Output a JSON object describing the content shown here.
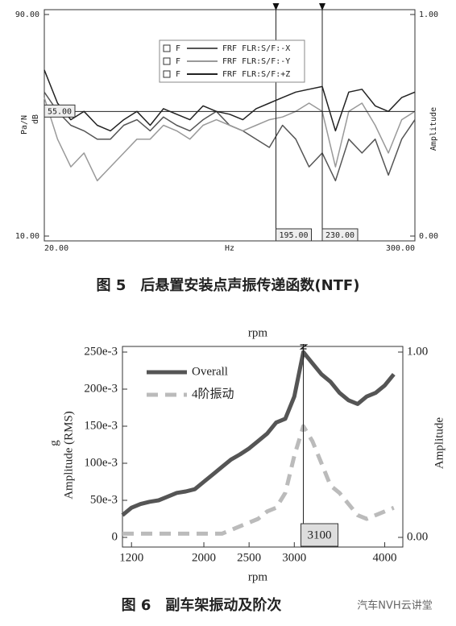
{
  "chart_data": [
    {
      "type": "line",
      "title": "图 5　后悬置安装点声振传递函数(NTF)",
      "ylabel": "Pa/N",
      "yunit": "dB",
      "xlabel": "Hz",
      "y2label": "Amplitude",
      "x": [
        20,
        30,
        40,
        50,
        60,
        70,
        80,
        90,
        100,
        110,
        120,
        130,
        140,
        150,
        160,
        170,
        180,
        190,
        200,
        210,
        220,
        230,
        240,
        250,
        260,
        270,
        280,
        290,
        300
      ],
      "legend_prefix": "F",
      "series": [
        {
          "name": "FRF FLR:S/F:-X",
          "color": "#555555",
          "values": [
            62,
            55,
            50,
            48,
            45,
            45,
            50,
            52,
            48,
            53,
            50,
            48,
            52,
            55,
            50,
            48,
            45,
            42,
            50,
            45,
            35,
            40,
            30,
            45,
            40,
            45,
            32,
            45,
            52
          ]
        },
        {
          "name": "FRF FLR:S/F:-Y",
          "color": "#999999",
          "values": [
            60,
            45,
            35,
            40,
            30,
            35,
            40,
            45,
            45,
            50,
            48,
            45,
            50,
            52,
            50,
            48,
            50,
            52,
            53,
            55,
            58,
            55,
            35,
            55,
            58,
            50,
            40,
            52,
            55
          ]
        },
        {
          "name": "FRF FLR:S/F:+Z",
          "color": "#222222",
          "values": [
            70,
            58,
            52,
            55,
            50,
            48,
            52,
            55,
            50,
            56,
            54,
            52,
            57,
            55,
            54,
            52,
            56,
            58,
            60,
            62,
            63,
            64,
            48,
            62,
            63,
            57,
            55,
            60,
            62
          ]
        }
      ],
      "xlim": [
        20,
        300
      ],
      "xticks": [
        {
          "value": 20,
          "label": "20.00"
        },
        {
          "value": 300,
          "label": "300.00"
        }
      ],
      "ylim": [
        10,
        90
      ],
      "yticks": [
        {
          "value": 10,
          "label": "10.00"
        },
        {
          "value": 90,
          "label": "90.00"
        }
      ],
      "y2lim": [
        0,
        1
      ],
      "y2ticks": [
        {
          "value": 0,
          "label": "0.00"
        },
        {
          "value": 1,
          "label": "1.00"
        }
      ],
      "cursors": [
        {
          "value": 195,
          "label": "195.00"
        },
        {
          "value": 230,
          "label": "230.00"
        }
      ],
      "hcursor": {
        "value": 55,
        "label": "55.00"
      }
    },
    {
      "type": "line",
      "title": "图 6　副车架振动及阶次",
      "top_label": "rpm",
      "xlabel": "rpm",
      "ylabel": "Amplitude (RMS)",
      "yunit": "g",
      "y2label": "Amplitude",
      "x": [
        1100,
        1200,
        1300,
        1400,
        1500,
        1600,
        1700,
        1800,
        1900,
        2000,
        2100,
        2200,
        2300,
        2400,
        2500,
        2600,
        2700,
        2800,
        2900,
        3000,
        3100,
        3200,
        3300,
        3400,
        3500,
        3600,
        3700,
        3800,
        3900,
        4000,
        4100
      ],
      "series": [
        {
          "name": "Overall",
          "color": "#555555",
          "values": [
            0.03,
            0.04,
            0.045,
            0.048,
            0.05,
            0.055,
            0.06,
            0.062,
            0.065,
            0.075,
            0.085,
            0.095,
            0.105,
            0.112,
            0.12,
            0.13,
            0.14,
            0.155,
            0.16,
            0.19,
            0.25,
            0.235,
            0.22,
            0.21,
            0.195,
            0.185,
            0.18,
            0.19,
            0.195,
            0.205,
            0.22
          ]
        },
        {
          "name": "4阶振动",
          "color": "#bbbbbb",
          "dashed": true,
          "values": [
            0.005,
            0.005,
            0.005,
            0.005,
            0.005,
            0.005,
            0.005,
            0.005,
            0.005,
            0.005,
            0.005,
            0.005,
            0.01,
            0.015,
            0.02,
            0.025,
            0.035,
            0.04,
            0.06,
            0.11,
            0.15,
            0.13,
            0.1,
            0.07,
            0.06,
            0.045,
            0.03,
            0.025,
            0.03,
            0.035,
            0.04
          ]
        }
      ],
      "xlim": [
        1100,
        4200
      ],
      "xticks": [
        1200,
        2000,
        2500,
        3000,
        4000
      ],
      "ylim": [
        0,
        0.25
      ],
      "yticks": [
        0,
        {
          "value": 0.05,
          "label": "50e-3"
        },
        {
          "value": 0.1,
          "label": "100e-3"
        },
        {
          "value": 0.15,
          "label": "150e-3"
        },
        {
          "value": 0.2,
          "label": "200e-3"
        },
        {
          "value": 0.25,
          "label": "250e-3"
        }
      ],
      "y2lim": [
        0,
        1
      ],
      "y2ticks": [
        {
          "value": 0,
          "label": "0.00"
        },
        {
          "value": 1,
          "label": "1.00"
        }
      ],
      "cursors": [
        {
          "value": 3100,
          "label": "3100"
        }
      ]
    }
  ],
  "watermark": "汽车NVH云讲堂"
}
